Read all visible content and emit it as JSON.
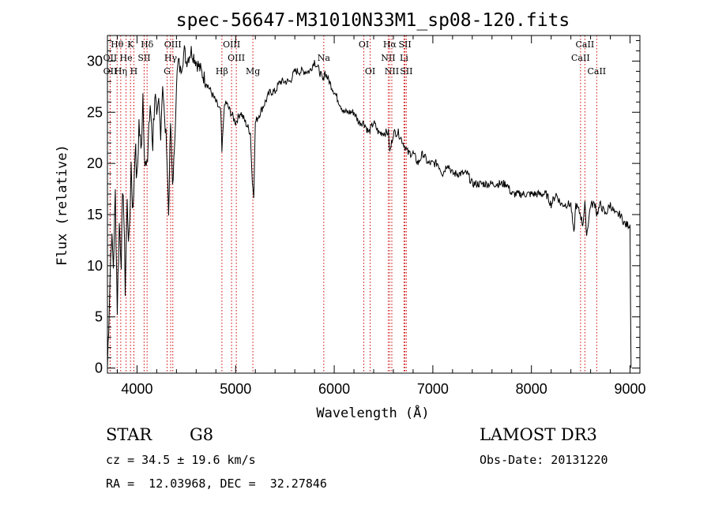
{
  "chart_data": {
    "type": "line",
    "title": "spec-56647-M31010N33M1_sp08-120.fits",
    "xlabel": "Wavelength (Å)",
    "ylabel": "Flux (relative)",
    "xlim": [
      3700,
      9100
    ],
    "ylim": [
      -0.5,
      32.5
    ],
    "x_ticks": [
      4000,
      5000,
      6000,
      7000,
      8000,
      9000
    ],
    "y_ticks": [
      0,
      5,
      10,
      15,
      20,
      25,
      30
    ],
    "series": [
      {
        "name": "flux",
        "x": [
          3700,
          3720,
          3740,
          3760,
          3780,
          3800,
          3820,
          3840,
          3860,
          3880,
          3900,
          3920,
          3940,
          3960,
          3980,
          4000,
          4020,
          4040,
          4060,
          4080,
          4100,
          4120,
          4140,
          4160,
          4180,
          4200,
          4220,
          4240,
          4260,
          4280,
          4300,
          4320,
          4340,
          4360,
          4380,
          4400,
          4420,
          4440,
          4460,
          4480,
          4500,
          4550,
          4600,
          4650,
          4700,
          4750,
          4800,
          4850,
          4861,
          4880,
          4900,
          4950,
          5000,
          5050,
          5100,
          5150,
          5170,
          5184,
          5200,
          5250,
          5300,
          5350,
          5400,
          5450,
          5500,
          5550,
          5600,
          5650,
          5700,
          5750,
          5800,
          5850,
          5890,
          5900,
          5950,
          6000,
          6050,
          6100,
          6150,
          6200,
          6250,
          6300,
          6350,
          6400,
          6450,
          6500,
          6550,
          6563,
          6600,
          6650,
          6700,
          6750,
          6800,
          6850,
          6900,
          6950,
          7000,
          7050,
          7100,
          7150,
          7200,
          7250,
          7300,
          7350,
          7400,
          7450,
          7500,
          7550,
          7600,
          7650,
          7700,
          7750,
          7800,
          7850,
          7900,
          7950,
          8000,
          8050,
          8100,
          8150,
          8200,
          8250,
          8300,
          8350,
          8400,
          8430,
          8450,
          8498,
          8520,
          8542,
          8560,
          8600,
          8650,
          8662,
          8700,
          8750,
          8800,
          8850,
          8900,
          8950,
          9000,
          9010
        ],
        "values": [
          0,
          7,
          13,
          10,
          17,
          6,
          14,
          11,
          18,
          8,
          16,
          12,
          20,
          15,
          22,
          18,
          24,
          21,
          27,
          20,
          19,
          24,
          25,
          22,
          27,
          24,
          26,
          23,
          28,
          24,
          22,
          15,
          24,
          18,
          21,
          28,
          30,
          29,
          30,
          31,
          30,
          31,
          30,
          29,
          28,
          27,
          26,
          25,
          21,
          25,
          26,
          25,
          24,
          25,
          24,
          23,
          18,
          17,
          24,
          25,
          26,
          27,
          27,
          28,
          28,
          28,
          29,
          29,
          29,
          29,
          30,
          29,
          28,
          29,
          28,
          27,
          26,
          25,
          25,
          25,
          24,
          24,
          23,
          24,
          23,
          23,
          23,
          21,
          23,
          23,
          22,
          21,
          21,
          20,
          21,
          20,
          20,
          20,
          19,
          20,
          19,
          19,
          19,
          19,
          18,
          18,
          18,
          18,
          18,
          18,
          18,
          18,
          17,
          17,
          17,
          17,
          17,
          17,
          17,
          17,
          16,
          17,
          16,
          16,
          16,
          13,
          16,
          15,
          14,
          16,
          13,
          16,
          16,
          15,
          16,
          15,
          16,
          15,
          15,
          14,
          14,
          0
        ]
      }
    ],
    "spectral_lines": [
      {
        "name": "Hθ",
        "wavelength": 3798,
        "row": 1
      },
      {
        "name": "OII",
        "wavelength": 3727,
        "row": 2
      },
      {
        "name": "OII",
        "wavelength": 3728,
        "row": 3
      },
      {
        "name": "Hη",
        "wavelength": 3835,
        "row": 3
      },
      {
        "name": "K",
        "wavelength": 3934,
        "row": 1
      },
      {
        "name": "He",
        "wavelength": 3889,
        "row": 2
      },
      {
        "name": "H",
        "wavelength": 3968,
        "row": 3
      },
      {
        "name": "SII",
        "wavelength": 4072,
        "row": 2
      },
      {
        "name": "Hδ",
        "wavelength": 4102,
        "row": 1
      },
      {
        "name": "OIII",
        "wavelength": 4363,
        "row": 1
      },
      {
        "name": "Hγ",
        "wavelength": 4341,
        "row": 2
      },
      {
        "name": "G",
        "wavelength": 4305,
        "row": 3
      },
      {
        "name": "Hβ",
        "wavelength": 4861,
        "row": 3
      },
      {
        "name": "OIII",
        "wavelength": 4959,
        "row": 1
      },
      {
        "name": "OIII",
        "wavelength": 5007,
        "row": 2
      },
      {
        "name": "Mg",
        "wavelength": 5175,
        "row": 3
      },
      {
        "name": "Na",
        "wavelength": 5894,
        "row": 2
      },
      {
        "name": "OI",
        "wavelength": 6300,
        "row": 1
      },
      {
        "name": "OI",
        "wavelength": 6364,
        "row": 3
      },
      {
        "name": "Hα",
        "wavelength": 6563,
        "row": 1
      },
      {
        "name": "NII",
        "wavelength": 6548,
        "row": 2
      },
      {
        "name": "NII",
        "wavelength": 6584,
        "row": 3
      },
      {
        "name": "SII",
        "wavelength": 6717,
        "row": 1
      },
      {
        "name": "Li",
        "wavelength": 6708,
        "row": 2
      },
      {
        "name": "SII",
        "wavelength": 6731,
        "row": 3
      },
      {
        "name": "CaII",
        "wavelength": 8542,
        "row": 1
      },
      {
        "name": "CaII",
        "wavelength": 8498,
        "row": 2
      },
      {
        "name": "CaII",
        "wavelength": 8662,
        "row": 3
      }
    ],
    "line_marker_color": "#cc0000"
  },
  "info": {
    "class_label": "STAR",
    "subclass_label": "G8",
    "survey": "LAMOST DR3",
    "cz": "cz = 34.5 ± 19.6 km/s",
    "obs_date": "Obs-Date: 20131220",
    "coords": "RA =  12.03968, DEC =  32.27846"
  }
}
